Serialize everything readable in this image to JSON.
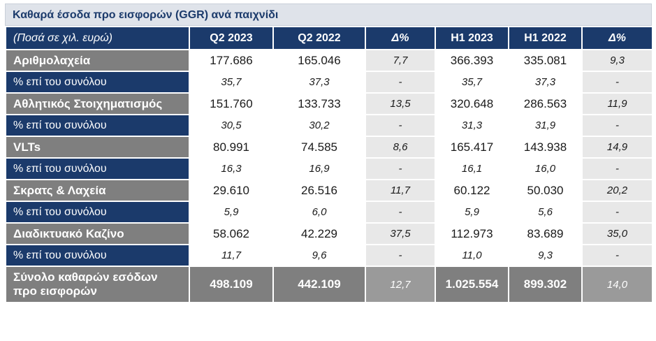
{
  "title": "Καθαρά έσοδα προ εισφορών (GGR) ανά παιχνίδι",
  "header": [
    "(Ποσά σε χιλ. ευρώ)",
    "Q2 2023",
    "Q2 2022",
    "Δ%",
    "H1 2023",
    "H1 2022",
    "Δ%"
  ],
  "rows": [
    {
      "type": "cat",
      "cells": [
        "Αριθμολαχεία",
        "177.686",
        "165.046",
        "7,7",
        "366.393",
        "335.081",
        "9,3"
      ]
    },
    {
      "type": "pct",
      "cells": [
        "% επί του συνόλου",
        "35,7",
        "37,3",
        "-",
        "35,7",
        "37,3",
        "-"
      ]
    },
    {
      "type": "cat",
      "cells": [
        "Αθλητικός Στοιχηματισμός",
        "151.760",
        "133.733",
        "13,5",
        "320.648",
        "286.563",
        "11,9"
      ]
    },
    {
      "type": "pct",
      "cells": [
        "% επί του συνόλου",
        "30,5",
        "30,2",
        "-",
        "31,3",
        "31,9",
        "-"
      ]
    },
    {
      "type": "cat",
      "cells": [
        "VLTs",
        "80.991",
        "74.585",
        "8,6",
        "165.417",
        "143.938",
        "14,9"
      ]
    },
    {
      "type": "pct",
      "cells": [
        "% επί του συνόλου",
        "16,3",
        "16,9",
        "-",
        "16,1",
        "16,0",
        "-"
      ]
    },
    {
      "type": "cat",
      "cells": [
        "Σκρατς & Λαχεία",
        "29.610",
        "26.516",
        "11,7",
        "60.122",
        "50.030",
        "20,2"
      ]
    },
    {
      "type": "pct",
      "cells": [
        "% επί του συνόλου",
        "5,9",
        "6,0",
        "-",
        "5,9",
        "5,6",
        "-"
      ]
    },
    {
      "type": "cat",
      "cells": [
        "Διαδικτυακό Καζίνο",
        "58.062",
        "42.229",
        "37,5",
        "112.973",
        "83.689",
        "35,0"
      ]
    },
    {
      "type": "pct",
      "cells": [
        "% επί του συνόλου",
        "11,7",
        "9,6",
        "-",
        "11,0",
        "9,3",
        "-"
      ]
    }
  ],
  "total": {
    "label_line1": "Σύνολο καθαρών εσόδων",
    "label_line2": "προ εισφορών",
    "cells": [
      "498.109",
      "442.109",
      "12,7",
      "1.025.554",
      "899.302",
      "14,0"
    ]
  }
}
